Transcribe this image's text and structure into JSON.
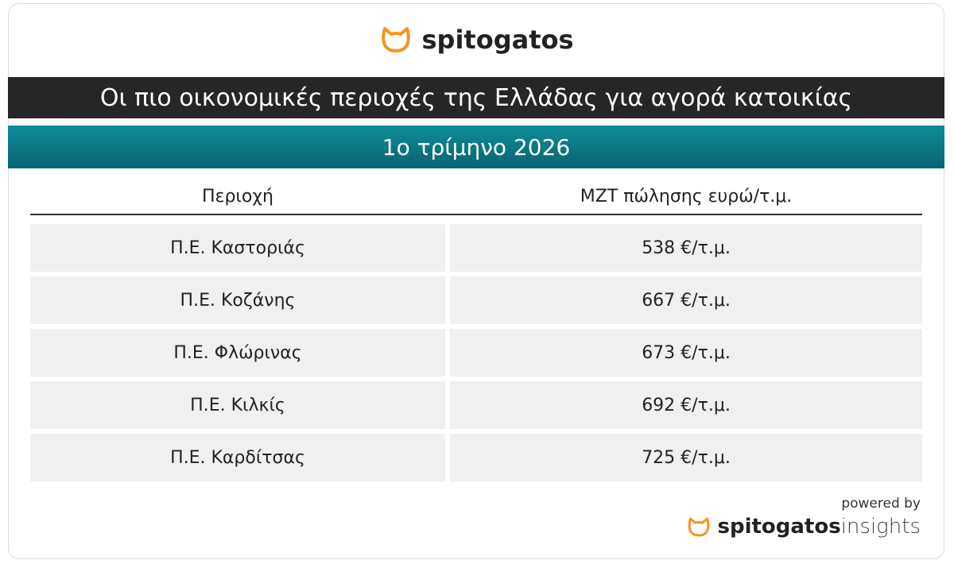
{
  "header": {
    "brand": "spitogatos",
    "title": "Οι πιο οικονομικές περιοχές της Ελλάδας για αγορά κατοικίας",
    "subtitle": "1ο τρίμηνο 2026"
  },
  "table": {
    "columns": [
      "Περιοχή",
      "ΜΖΤ πώλησης ευρώ/τ.μ."
    ],
    "rows": [
      [
        "Π.Ε. Καστοριάς",
        "538 €/τ.μ."
      ],
      [
        "Π.Ε. Κοζάνης",
        "667 €/τ.μ."
      ],
      [
        "Π.Ε. Φλώρινας",
        "673 €/τ.μ."
      ],
      [
        "Π.Ε. Κιλκίς",
        "692 €/τ.μ."
      ],
      [
        "Π.Ε. Καρδίτσας",
        "725 €/τ.μ."
      ]
    ]
  },
  "footer": {
    "powered_by": "powered by",
    "brand": "spitogatos",
    "product": "insights"
  }
}
